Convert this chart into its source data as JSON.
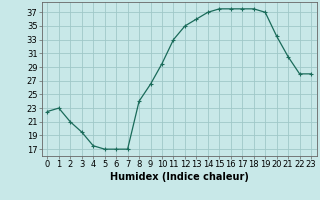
{
  "x": [
    0,
    1,
    2,
    3,
    4,
    5,
    6,
    7,
    8,
    9,
    10,
    11,
    12,
    13,
    14,
    15,
    16,
    17,
    18,
    19,
    20,
    21,
    22,
    23
  ],
  "y": [
    22.5,
    23.0,
    21.0,
    19.5,
    17.5,
    17.0,
    17.0,
    17.0,
    24.0,
    26.5,
    29.5,
    33.0,
    35.0,
    36.0,
    37.0,
    37.5,
    37.5,
    37.5,
    37.5,
    37.0,
    33.5,
    30.5,
    28.0,
    28.0
  ],
  "line_color": "#1a6b5a",
  "marker": "+",
  "bg_color": "#c8e8e8",
  "grid_color": "#a0c8c8",
  "xlabel": "Humidex (Indice chaleur)",
  "ylabel_ticks": [
    17,
    19,
    21,
    23,
    25,
    27,
    29,
    31,
    33,
    35,
    37
  ],
  "ylim": [
    16,
    38.5
  ],
  "xlim": [
    -0.5,
    23.5
  ],
  "tick_fontsize": 6,
  "xlabel_fontsize": 7,
  "xlabel_fontweight": "bold"
}
